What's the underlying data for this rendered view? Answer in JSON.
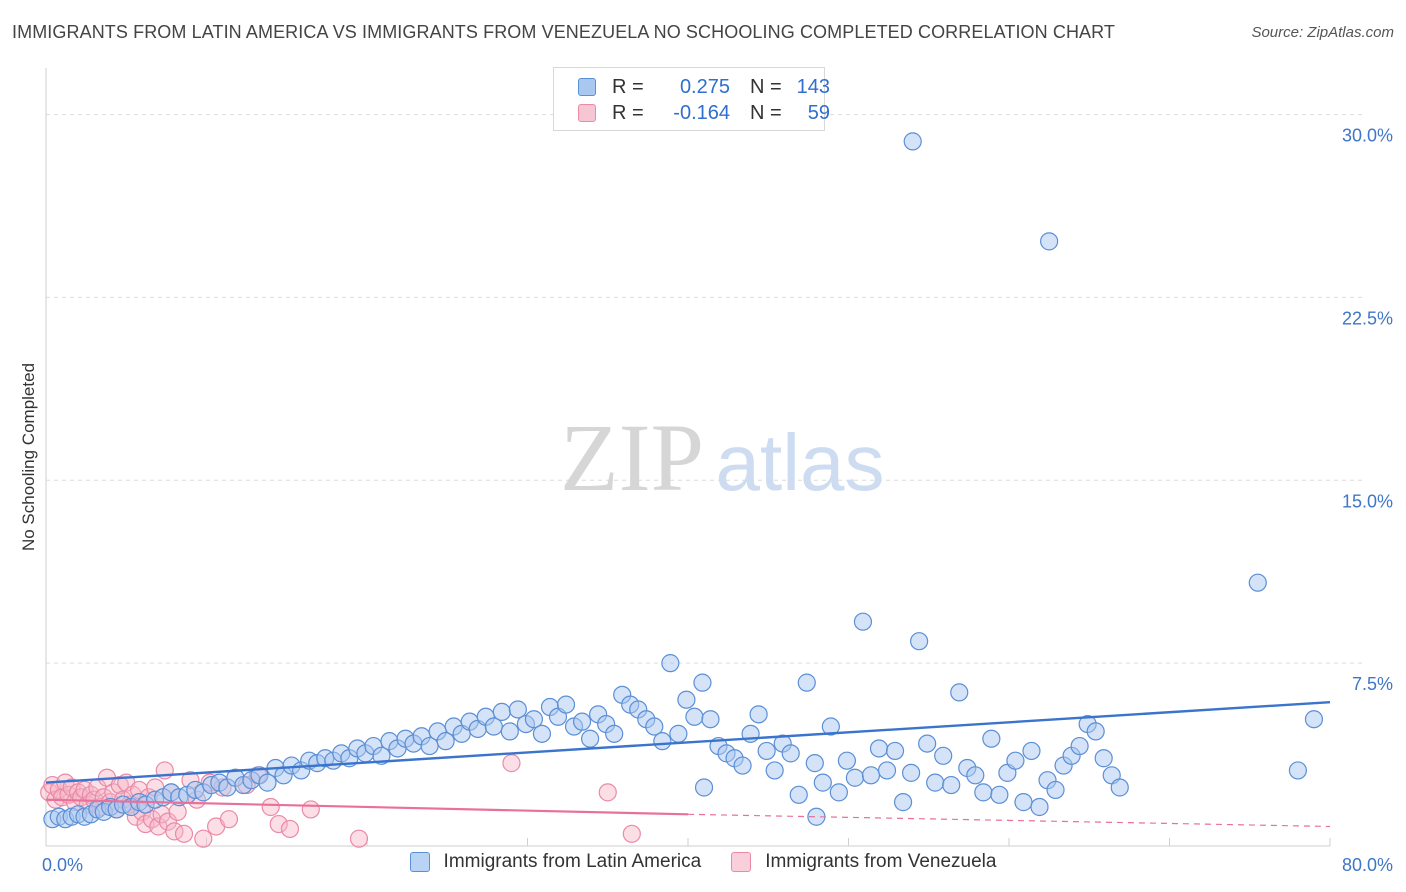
{
  "header": {
    "title": "IMMIGRANTS FROM LATIN AMERICA VS IMMIGRANTS FROM VENEZUELA NO SCHOOLING COMPLETED CORRELATION CHART",
    "source": "Source: ZipAtlas.com"
  },
  "legend": {
    "rows": [
      {
        "r_label": "R =",
        "r_value": "0.275",
        "n_label": "N =",
        "n_value": "143"
      },
      {
        "r_label": "R =",
        "r_value": "-0.164",
        "n_label": "N =",
        "n_value": "59"
      }
    ]
  },
  "watermark": {
    "zip": "ZIP",
    "atlas": "atlas"
  },
  "colors": {
    "blue_fill": "#a9c8f0",
    "blue_stroke": "#5b8fd6",
    "blue_line": "#3a74cc",
    "pink_fill": "#f7b6c8",
    "pink_stroke": "#ea8aa6",
    "pink_line": "#e8709a",
    "grid": "#dcdcdc",
    "axis_text": "#3f76c7"
  },
  "chart_data": {
    "type": "scatter",
    "title": "IMMIGRANTS FROM LATIN AMERICA VS IMMIGRANTS FROM VENEZUELA NO SCHOOLING COMPLETED CORRELATION CHART",
    "xlabel": "",
    "ylabel": "No Schooling Completed",
    "xlim": [
      0,
      80
    ],
    "ylim": [
      0,
      31.5
    ],
    "x_tick_labels": [
      "0.0%",
      "80.0%"
    ],
    "y_ticks": [
      7.5,
      15.0,
      22.5,
      30.0
    ],
    "y_tick_labels": [
      "7.5%",
      "15.0%",
      "22.5%",
      "30.0%"
    ],
    "x_grid": [
      10,
      20,
      30,
      40,
      50,
      60,
      70,
      80
    ],
    "series": [
      {
        "name": "Immigrants from Latin America",
        "color": "blue",
        "r": 0.275,
        "n": 143,
        "trend": {
          "x0": 0,
          "y0": 2.6,
          "x1": 80,
          "y1": 5.9
        },
        "points": [
          [
            0.4,
            1.1
          ],
          [
            0.8,
            1.2
          ],
          [
            1.2,
            1.1
          ],
          [
            1.6,
            1.2
          ],
          [
            2.0,
            1.3
          ],
          [
            2.4,
            1.2
          ],
          [
            2.8,
            1.3
          ],
          [
            3.2,
            1.5
          ],
          [
            3.6,
            1.4
          ],
          [
            4.0,
            1.6
          ],
          [
            4.4,
            1.5
          ],
          [
            4.8,
            1.7
          ],
          [
            5.3,
            1.6
          ],
          [
            5.8,
            1.8
          ],
          [
            6.2,
            1.7
          ],
          [
            6.8,
            1.9
          ],
          [
            7.3,
            2.0
          ],
          [
            7.8,
            2.2
          ],
          [
            8.3,
            2.0
          ],
          [
            8.8,
            2.1
          ],
          [
            9.3,
            2.3
          ],
          [
            9.8,
            2.2
          ],
          [
            10.3,
            2.5
          ],
          [
            10.8,
            2.6
          ],
          [
            11.3,
            2.4
          ],
          [
            11.8,
            2.8
          ],
          [
            12.3,
            2.5
          ],
          [
            12.8,
            2.7
          ],
          [
            13.3,
            2.9
          ],
          [
            13.8,
            2.6
          ],
          [
            14.3,
            3.2
          ],
          [
            14.8,
            2.9
          ],
          [
            15.3,
            3.3
          ],
          [
            15.9,
            3.1
          ],
          [
            16.4,
            3.5
          ],
          [
            16.9,
            3.4
          ],
          [
            17.4,
            3.6
          ],
          [
            17.9,
            3.5
          ],
          [
            18.4,
            3.8
          ],
          [
            18.9,
            3.6
          ],
          [
            19.4,
            4.0
          ],
          [
            19.9,
            3.8
          ],
          [
            20.4,
            4.1
          ],
          [
            20.9,
            3.7
          ],
          [
            21.4,
            4.3
          ],
          [
            21.9,
            4.0
          ],
          [
            22.4,
            4.4
          ],
          [
            22.9,
            4.2
          ],
          [
            23.4,
            4.5
          ],
          [
            23.9,
            4.1
          ],
          [
            24.4,
            4.7
          ],
          [
            24.9,
            4.3
          ],
          [
            25.4,
            4.9
          ],
          [
            25.9,
            4.6
          ],
          [
            26.4,
            5.1
          ],
          [
            26.9,
            4.8
          ],
          [
            27.4,
            5.3
          ],
          [
            27.9,
            4.9
          ],
          [
            28.4,
            5.5
          ],
          [
            28.9,
            4.7
          ],
          [
            29.4,
            5.6
          ],
          [
            29.9,
            5.0
          ],
          [
            30.4,
            5.2
          ],
          [
            30.9,
            4.6
          ],
          [
            31.4,
            5.7
          ],
          [
            31.9,
            5.3
          ],
          [
            32.4,
            5.8
          ],
          [
            32.9,
            4.9
          ],
          [
            33.4,
            5.1
          ],
          [
            33.9,
            4.4
          ],
          [
            34.4,
            5.4
          ],
          [
            34.9,
            5.0
          ],
          [
            35.4,
            4.6
          ],
          [
            35.9,
            6.2
          ],
          [
            36.4,
            5.8
          ],
          [
            36.9,
            5.6
          ],
          [
            37.4,
            5.2
          ],
          [
            37.9,
            4.9
          ],
          [
            38.4,
            4.3
          ],
          [
            38.9,
            7.5
          ],
          [
            39.4,
            4.6
          ],
          [
            39.9,
            6.0
          ],
          [
            40.4,
            5.3
          ],
          [
            40.9,
            6.7
          ],
          [
            41.4,
            5.2
          ],
          [
            41.9,
            4.1
          ],
          [
            42.4,
            3.8
          ],
          [
            42.9,
            3.6
          ],
          [
            43.4,
            3.3
          ],
          [
            43.9,
            4.6
          ],
          [
            44.4,
            5.4
          ],
          [
            44.9,
            3.9
          ],
          [
            45.4,
            3.1
          ],
          [
            45.9,
            4.2
          ],
          [
            46.4,
            3.8
          ],
          [
            46.9,
            2.1
          ],
          [
            47.4,
            6.7
          ],
          [
            47.9,
            3.4
          ],
          [
            48.4,
            2.6
          ],
          [
            48.9,
            4.9
          ],
          [
            49.4,
            2.2
          ],
          [
            49.9,
            3.5
          ],
          [
            50.4,
            2.8
          ],
          [
            50.9,
            9.2
          ],
          [
            51.4,
            2.9
          ],
          [
            51.9,
            4.0
          ],
          [
            52.4,
            3.1
          ],
          [
            52.9,
            3.9
          ],
          [
            53.4,
            1.8
          ],
          [
            53.9,
            3.0
          ],
          [
            54.4,
            8.4
          ],
          [
            54.9,
            4.2
          ],
          [
            55.4,
            2.6
          ],
          [
            55.9,
            3.7
          ],
          [
            56.4,
            2.5
          ],
          [
            56.9,
            6.3
          ],
          [
            57.4,
            3.2
          ],
          [
            57.9,
            2.9
          ],
          [
            58.4,
            2.2
          ],
          [
            58.9,
            4.4
          ],
          [
            59.4,
            2.1
          ],
          [
            59.9,
            3.0
          ],
          [
            60.4,
            3.5
          ],
          [
            60.9,
            1.8
          ],
          [
            61.4,
            3.9
          ],
          [
            61.9,
            1.6
          ],
          [
            62.4,
            2.7
          ],
          [
            62.9,
            2.3
          ],
          [
            63.4,
            3.3
          ],
          [
            63.9,
            3.7
          ],
          [
            64.4,
            4.1
          ],
          [
            64.9,
            5.0
          ],
          [
            65.4,
            4.7
          ],
          [
            65.9,
            3.6
          ],
          [
            66.4,
            2.9
          ],
          [
            66.9,
            2.4
          ],
          [
            54.0,
            28.9
          ],
          [
            62.5,
            24.8
          ],
          [
            75.5,
            10.8
          ],
          [
            78.0,
            3.1
          ],
          [
            79.0,
            5.2
          ],
          [
            48.0,
            1.2
          ],
          [
            41.0,
            2.4
          ]
        ]
      },
      {
        "name": "Immigrants from Venezuela",
        "color": "pink",
        "r": -0.164,
        "n": 59,
        "trend": {
          "x0": 0,
          "y0": 1.9,
          "x1": 40,
          "y1": 1.3
        },
        "trend_extension": {
          "x0": 40,
          "y0": 1.3,
          "x1": 80,
          "y1": 0.8
        },
        "points": [
          [
            0.2,
            2.2
          ],
          [
            0.4,
            2.5
          ],
          [
            0.6,
            1.9
          ],
          [
            0.8,
            2.3
          ],
          [
            1.0,
            2.0
          ],
          [
            1.2,
            2.6
          ],
          [
            1.4,
            2.1
          ],
          [
            1.6,
            2.4
          ],
          [
            1.8,
            1.8
          ],
          [
            2.0,
            2.2
          ],
          [
            2.2,
            2.0
          ],
          [
            2.4,
            2.3
          ],
          [
            2.6,
            1.7
          ],
          [
            2.8,
            2.1
          ],
          [
            3.0,
            1.9
          ],
          [
            3.2,
            2.4
          ],
          [
            3.4,
            1.6
          ],
          [
            3.6,
            2.0
          ],
          [
            3.8,
            2.8
          ],
          [
            4.0,
            1.8
          ],
          [
            4.2,
            2.2
          ],
          [
            4.4,
            1.5
          ],
          [
            4.6,
            2.5
          ],
          [
            4.8,
            1.9
          ],
          [
            5.0,
            2.6
          ],
          [
            5.2,
            1.7
          ],
          [
            5.4,
            2.1
          ],
          [
            5.6,
            1.2
          ],
          [
            5.8,
            2.3
          ],
          [
            6.0,
            1.4
          ],
          [
            6.2,
            0.9
          ],
          [
            6.4,
            2.0
          ],
          [
            6.6,
            1.1
          ],
          [
            6.8,
            2.4
          ],
          [
            7.0,
            0.8
          ],
          [
            7.2,
            1.3
          ],
          [
            7.4,
            3.1
          ],
          [
            7.6,
            1.0
          ],
          [
            7.8,
            2.2
          ],
          [
            8.0,
            0.6
          ],
          [
            8.2,
            1.4
          ],
          [
            8.6,
            0.5
          ],
          [
            9.0,
            2.7
          ],
          [
            9.4,
            1.9
          ],
          [
            9.8,
            0.3
          ],
          [
            10.2,
            2.6
          ],
          [
            10.6,
            0.8
          ],
          [
            11.0,
            2.4
          ],
          [
            11.4,
            1.1
          ],
          [
            12.5,
            2.5
          ],
          [
            13.2,
            2.9
          ],
          [
            14.0,
            1.6
          ],
          [
            14.5,
            0.9
          ],
          [
            15.2,
            0.7
          ],
          [
            16.5,
            1.5
          ],
          [
            19.5,
            0.3
          ],
          [
            29.0,
            3.4
          ],
          [
            35.0,
            2.2
          ],
          [
            36.5,
            0.5
          ]
        ]
      }
    ]
  },
  "bottom_legend": {
    "items": [
      {
        "label": "Immigrants from Latin America"
      },
      {
        "label": "Immigrants from Venezuela"
      }
    ]
  }
}
